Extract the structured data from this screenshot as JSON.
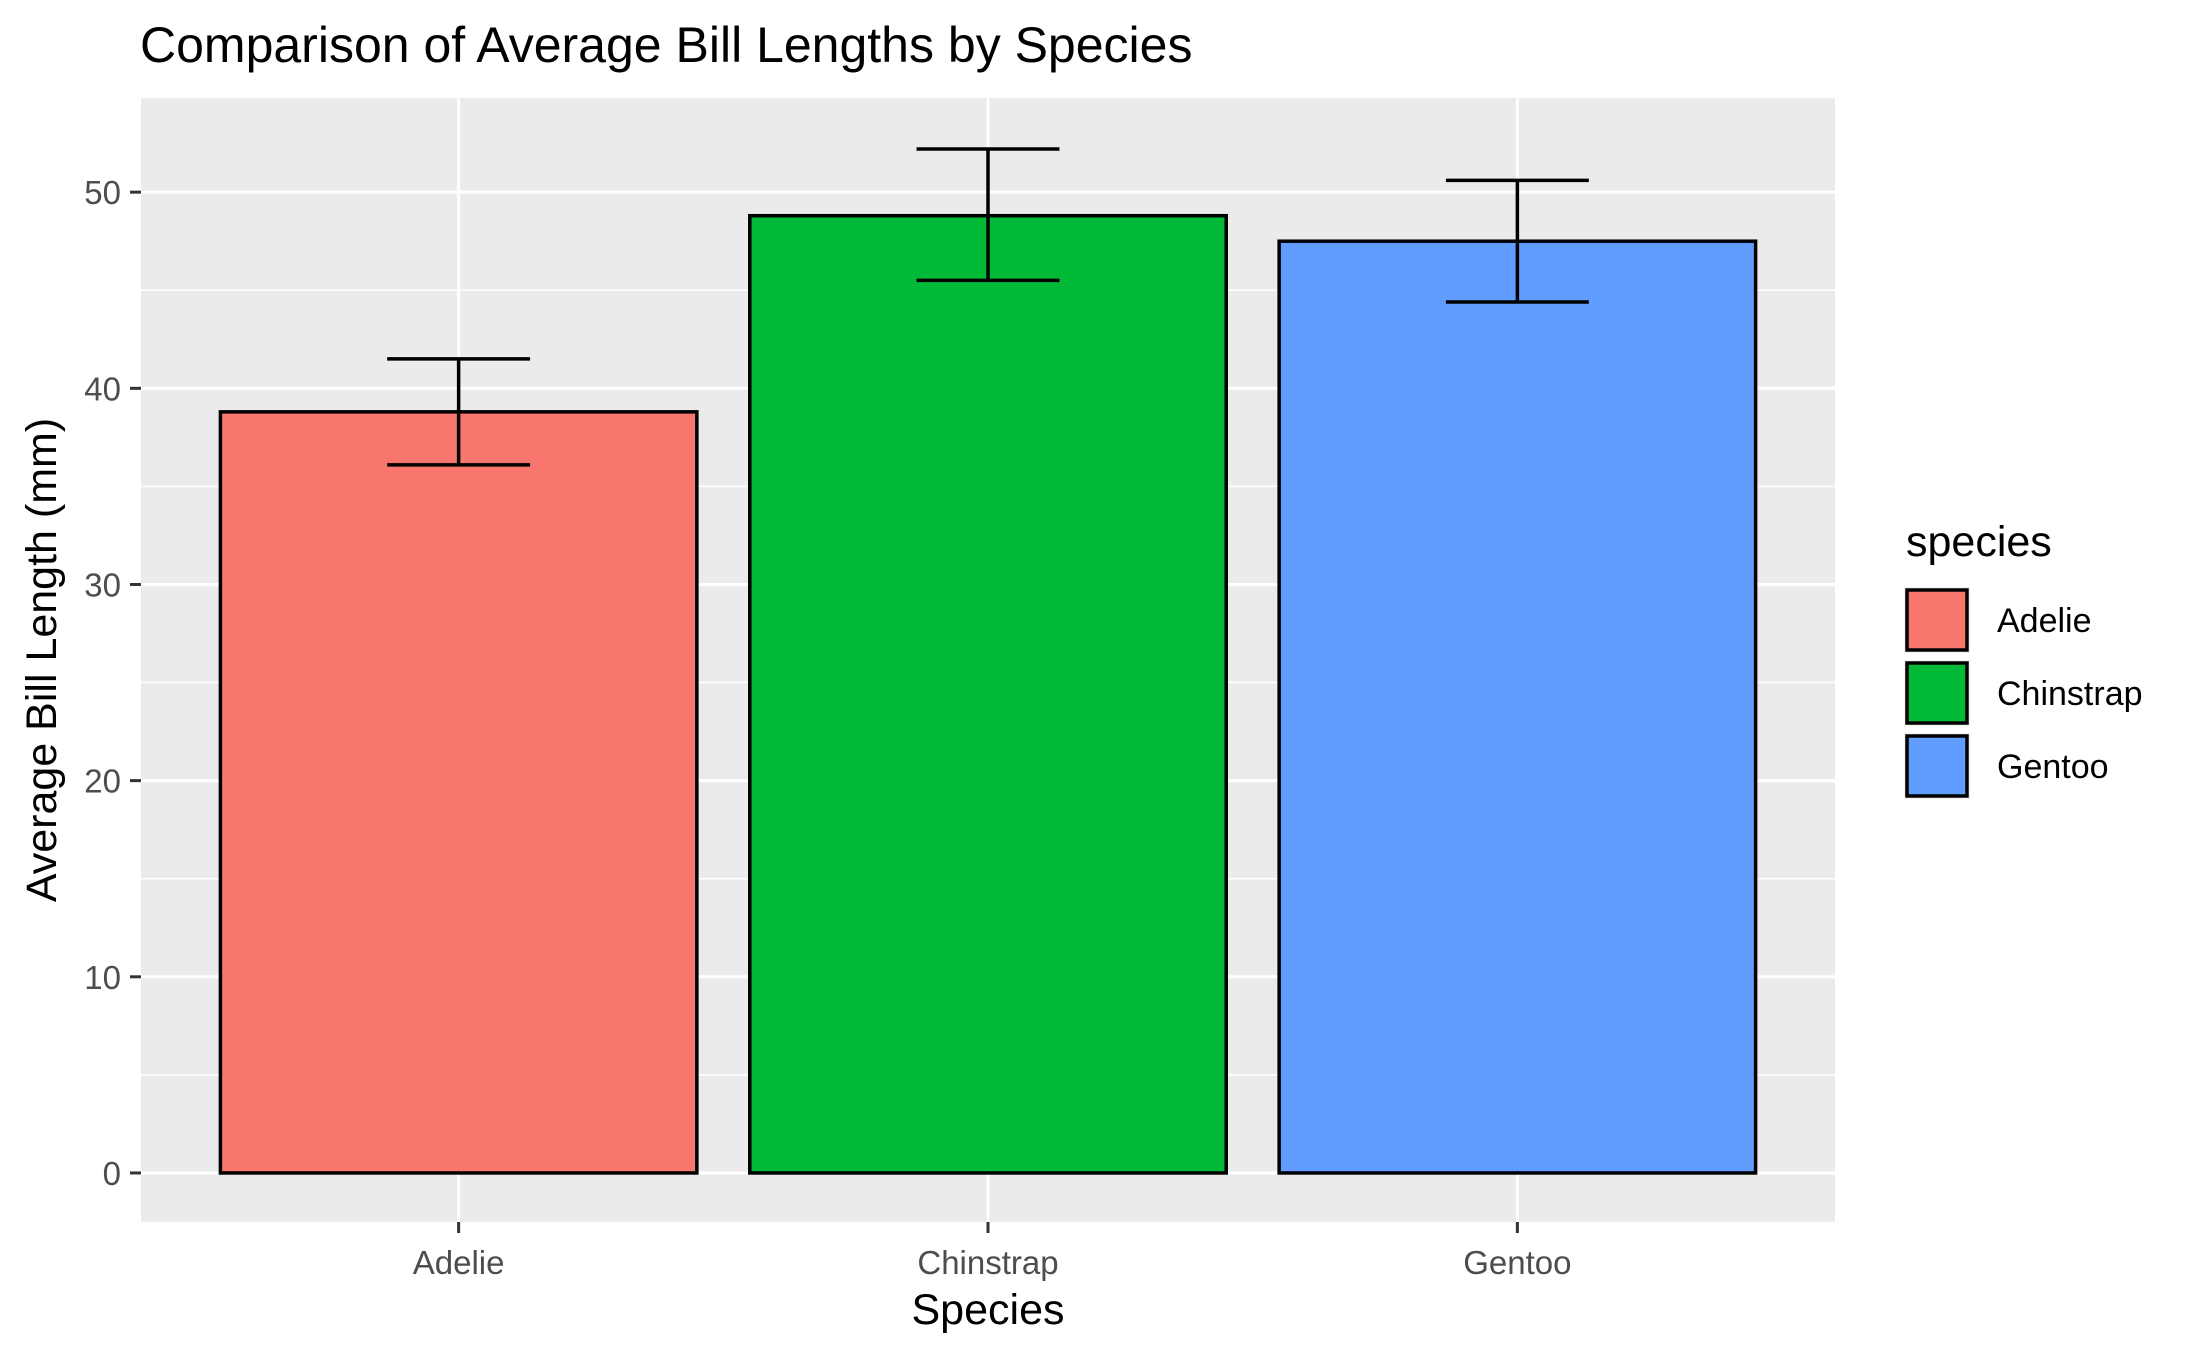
{
  "chart_data": {
    "type": "bar",
    "title": "Comparison of Average Bill Lengths by Species",
    "xlabel": "Species",
    "ylabel": "Average Bill Length (mm)",
    "categories": [
      "Adelie",
      "Chinstrap",
      "Gentoo"
    ],
    "values": [
      38.8,
      48.8,
      47.5
    ],
    "error_lower": [
      36.1,
      45.5,
      44.4
    ],
    "error_upper": [
      41.5,
      52.2,
      50.6
    ],
    "colors": [
      "#F8766D",
      "#00BA38",
      "#619CFF"
    ],
    "ylim": [
      -2.5,
      54.8
    ],
    "yticks": [
      0,
      10,
      20,
      30,
      40,
      50
    ],
    "legend": {
      "title": "species",
      "position": "right",
      "entries": [
        "Adelie",
        "Chinstrap",
        "Gentoo"
      ]
    },
    "grid": true,
    "panel_background": "#EBEBEB",
    "grid_color": "#FFFFFF",
    "bar_outline": "#000000"
  }
}
